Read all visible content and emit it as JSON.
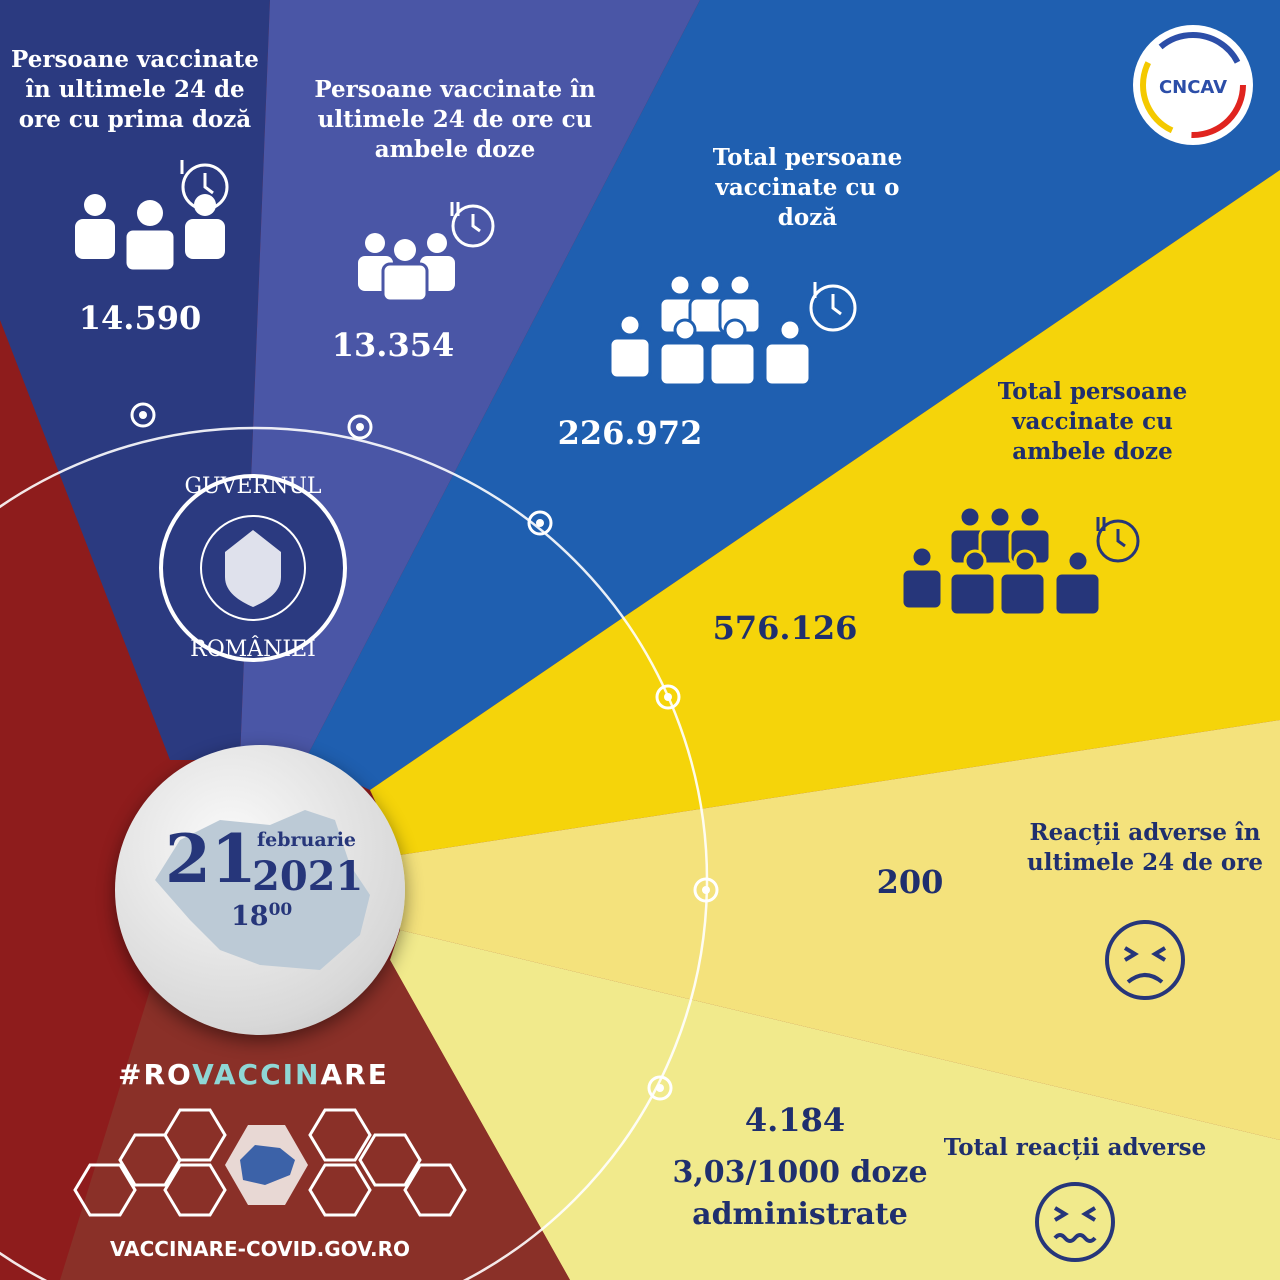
{
  "colors": {
    "red": "#8e1c1c",
    "navy": "#2b3a80",
    "violet": "#4a56a6",
    "blue": "#1f5fb0",
    "yellow": "#f5d40a",
    "light_yellow": "#f4e27c",
    "pale_yellow": "#f1ea8c",
    "brown": "#8a3028",
    "text_dark": "#1f2f6e"
  },
  "stats": [
    {
      "label": "Persoane vaccinate în ultimele 24 de ore cu prima doză",
      "value": "14.590",
      "icon": "people-clock-dose1-icon"
    },
    {
      "label": "Persoane vaccinate în ultimele 24 de ore cu ambele doze",
      "value": "13.354",
      "icon": "people-clock-dose2-icon"
    },
    {
      "label": "Total persoane vaccinate cu o doză",
      "value": "226.972",
      "icon": "crowd-clock-dose1-icon"
    },
    {
      "label": "Total persoane vaccinate cu ambele doze",
      "value": "576.126",
      "icon": "crowd-clock-dose2-icon"
    },
    {
      "label": "Reacții adverse în ultimele 24 de ore",
      "value": "200",
      "icon": "sad-face-icon"
    },
    {
      "label": "Total reacții adverse",
      "value": "4.184",
      "sub": "3,03/1000 doze administrate",
      "icon": "dizzy-face-icon"
    }
  ],
  "date": {
    "day": "21",
    "month": "februarie",
    "year": "2021",
    "hour": "18",
    "minutes": "00"
  },
  "logos": {
    "gov": "GUVERNUL ROMÂNIEI",
    "cncav": "CNCAV"
  },
  "footer": {
    "hashtag_a": "#RO",
    "hashtag_b": "VACCIN",
    "hashtag_c": "ARE",
    "site": "VACCINARE-COVID.GOV.RO"
  }
}
